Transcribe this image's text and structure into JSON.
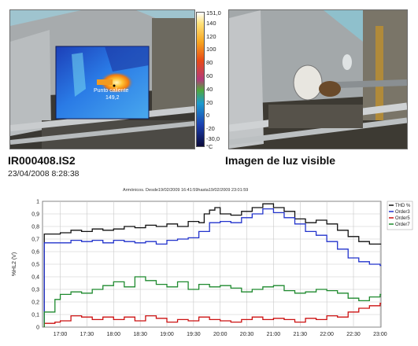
{
  "thermal": {
    "scale_labels": [
      "151,0",
      "140",
      "120",
      "100",
      "80",
      "60",
      "40",
      "20",
      "0",
      "-20",
      "-30,0"
    ],
    "scale_unit": "°C",
    "spot_label": "Punto caliente",
    "spot_value": "149,2",
    "colors": {
      "sky": "#9fc4cf",
      "metal": "#9ea4a6",
      "dark": "#2c2b27",
      "ir_bg": "#2a6ce0"
    }
  },
  "captions": {
    "file_id": "IR000408.IS2",
    "datetime": "23/04/2008 8:28:38",
    "visible_label": "Imagen de luz visible"
  },
  "chart_data": {
    "type": "line",
    "title": "Armónicos. Desde19/02/2009 16:41:59hasta19/02/2009 23:01:59",
    "ylabel": "%HL2 (V)",
    "xlabel": "",
    "ylim": [
      0,
      1
    ],
    "y_ticks": [
      "0",
      "0,1",
      "0,2",
      "0,3",
      "0,4",
      "0,5",
      "0,6",
      "0,7",
      "0,8",
      "0,9",
      "1"
    ],
    "x_ticks": [
      "17:00",
      "17:30",
      "18:00",
      "18:30",
      "19:00",
      "19:30",
      "20:00",
      "20:30",
      "21:00",
      "21:30",
      "22:00",
      "22:30",
      "23:00"
    ],
    "grid": true,
    "legend_position": "right",
    "series": [
      {
        "name": "THD %",
        "color": "#111111",
        "points": [
          [
            16.7,
            0.74
          ],
          [
            16.75,
            0.74
          ],
          [
            16.9,
            0.74
          ],
          [
            17.0,
            0.75
          ],
          [
            17.2,
            0.77
          ],
          [
            17.4,
            0.76
          ],
          [
            17.6,
            0.78
          ],
          [
            17.8,
            0.77
          ],
          [
            18.0,
            0.78
          ],
          [
            18.2,
            0.8
          ],
          [
            18.4,
            0.79
          ],
          [
            18.6,
            0.81
          ],
          [
            18.8,
            0.8
          ],
          [
            19.0,
            0.82
          ],
          [
            19.2,
            0.8
          ],
          [
            19.4,
            0.84
          ],
          [
            19.6,
            0.83
          ],
          [
            19.7,
            0.9
          ],
          [
            19.8,
            0.93
          ],
          [
            19.9,
            0.95
          ],
          [
            20.0,
            0.9
          ],
          [
            20.2,
            0.89
          ],
          [
            20.4,
            0.92
          ],
          [
            20.6,
            0.95
          ],
          [
            20.8,
            0.98
          ],
          [
            21.0,
            0.95
          ],
          [
            21.2,
            0.92
          ],
          [
            21.4,
            0.86
          ],
          [
            21.6,
            0.83
          ],
          [
            21.8,
            0.85
          ],
          [
            22.0,
            0.82
          ],
          [
            22.2,
            0.77
          ],
          [
            22.4,
            0.72
          ],
          [
            22.6,
            0.68
          ],
          [
            22.8,
            0.66
          ],
          [
            23.0,
            0.66
          ]
        ]
      },
      {
        "name": "Order3",
        "color": "#2233cc",
        "points": [
          [
            16.7,
            0.67
          ],
          [
            16.75,
            0.67
          ],
          [
            16.9,
            0.67
          ],
          [
            17.0,
            0.67
          ],
          [
            17.2,
            0.69
          ],
          [
            17.4,
            0.68
          ],
          [
            17.6,
            0.69
          ],
          [
            17.8,
            0.67
          ],
          [
            18.0,
            0.69
          ],
          [
            18.2,
            0.68
          ],
          [
            18.4,
            0.67
          ],
          [
            18.6,
            0.68
          ],
          [
            18.8,
            0.66
          ],
          [
            19.0,
            0.69
          ],
          [
            19.2,
            0.7
          ],
          [
            19.4,
            0.71
          ],
          [
            19.6,
            0.76
          ],
          [
            19.8,
            0.83
          ],
          [
            20.0,
            0.84
          ],
          [
            20.2,
            0.83
          ],
          [
            20.4,
            0.87
          ],
          [
            20.6,
            0.9
          ],
          [
            20.8,
            0.94
          ],
          [
            21.0,
            0.91
          ],
          [
            21.2,
            0.87
          ],
          [
            21.4,
            0.82
          ],
          [
            21.6,
            0.76
          ],
          [
            21.8,
            0.73
          ],
          [
            22.0,
            0.68
          ],
          [
            22.2,
            0.62
          ],
          [
            22.4,
            0.55
          ],
          [
            22.6,
            0.52
          ],
          [
            22.8,
            0.5
          ],
          [
            23.0,
            0.49
          ]
        ]
      },
      {
        "name": "Order5",
        "color": "#cc1111",
        "points": [
          [
            16.7,
            0.03
          ],
          [
            16.75,
            0.03
          ],
          [
            16.9,
            0.04
          ],
          [
            17.0,
            0.05
          ],
          [
            17.2,
            0.09
          ],
          [
            17.4,
            0.08
          ],
          [
            17.6,
            0.06
          ],
          [
            17.8,
            0.08
          ],
          [
            18.0,
            0.06
          ],
          [
            18.2,
            0.08
          ],
          [
            18.4,
            0.05
          ],
          [
            18.6,
            0.09
          ],
          [
            18.8,
            0.07
          ],
          [
            19.0,
            0.04
          ],
          [
            19.2,
            0.06
          ],
          [
            19.4,
            0.05
          ],
          [
            19.6,
            0.08
          ],
          [
            19.8,
            0.06
          ],
          [
            20.0,
            0.05
          ],
          [
            20.2,
            0.04
          ],
          [
            20.4,
            0.06
          ],
          [
            20.6,
            0.08
          ],
          [
            20.8,
            0.06
          ],
          [
            21.0,
            0.07
          ],
          [
            21.2,
            0.06
          ],
          [
            21.4,
            0.04
          ],
          [
            21.6,
            0.07
          ],
          [
            21.8,
            0.06
          ],
          [
            22.0,
            0.09
          ],
          [
            22.2,
            0.08
          ],
          [
            22.4,
            0.12
          ],
          [
            22.6,
            0.15
          ],
          [
            22.8,
            0.17
          ],
          [
            23.0,
            0.19
          ]
        ]
      },
      {
        "name": "Order7",
        "color": "#1e8a2e",
        "points": [
          [
            16.7,
            0.12
          ],
          [
            16.75,
            0.12
          ],
          [
            16.9,
            0.22
          ],
          [
            17.0,
            0.26
          ],
          [
            17.2,
            0.28
          ],
          [
            17.4,
            0.27
          ],
          [
            17.6,
            0.3
          ],
          [
            17.8,
            0.33
          ],
          [
            18.0,
            0.36
          ],
          [
            18.2,
            0.32
          ],
          [
            18.4,
            0.4
          ],
          [
            18.6,
            0.37
          ],
          [
            18.8,
            0.34
          ],
          [
            19.0,
            0.32
          ],
          [
            19.2,
            0.36
          ],
          [
            19.4,
            0.3
          ],
          [
            19.6,
            0.34
          ],
          [
            19.8,
            0.32
          ],
          [
            20.0,
            0.33
          ],
          [
            20.2,
            0.31
          ],
          [
            20.4,
            0.28
          ],
          [
            20.6,
            0.3
          ],
          [
            20.8,
            0.32
          ],
          [
            21.0,
            0.33
          ],
          [
            21.2,
            0.29
          ],
          [
            21.4,
            0.27
          ],
          [
            21.6,
            0.28
          ],
          [
            21.8,
            0.3
          ],
          [
            22.0,
            0.29
          ],
          [
            22.2,
            0.27
          ],
          [
            22.4,
            0.23
          ],
          [
            22.6,
            0.21
          ],
          [
            22.8,
            0.24
          ],
          [
            23.0,
            0.26
          ]
        ]
      }
    ]
  }
}
